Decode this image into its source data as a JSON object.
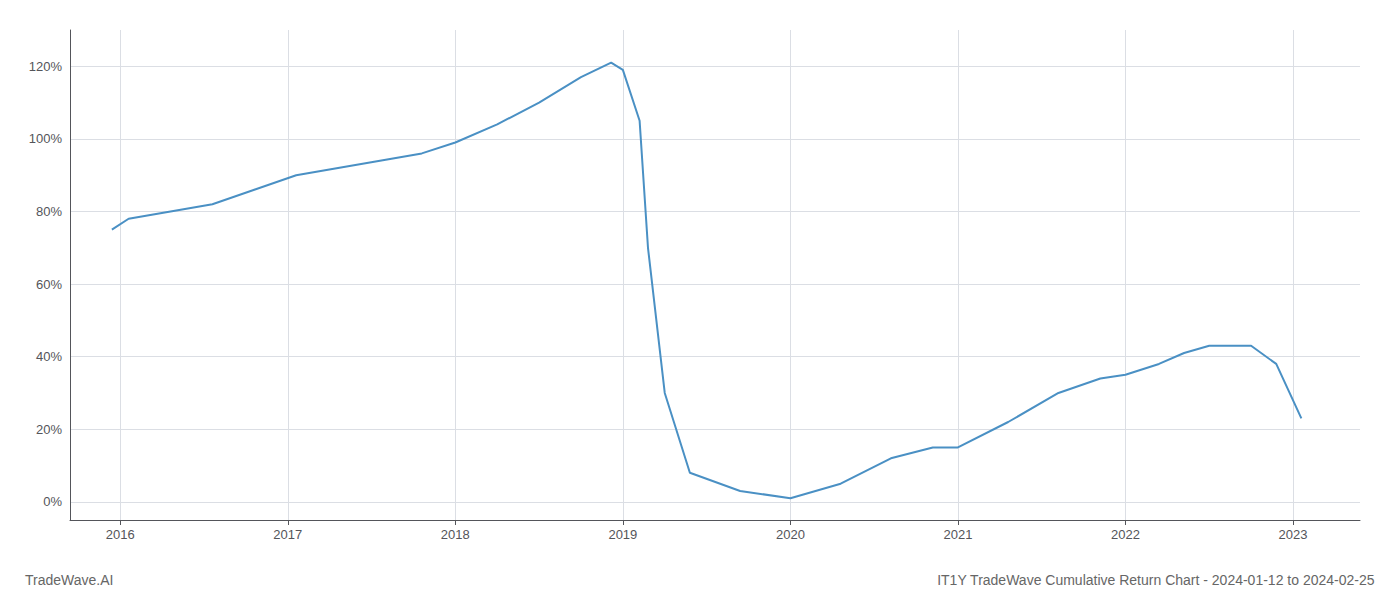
{
  "chart_data": {
    "type": "line",
    "title": "IT1Y TradeWave Cumulative Return Chart - 2024-01-12 to 2024-02-25",
    "annotations": [
      "TradeWave.AI"
    ],
    "x": [
      2015.95,
      2016.05,
      2016.3,
      2016.55,
      2016.8,
      2017.05,
      2017.3,
      2017.55,
      2017.8,
      2018.0,
      2018.25,
      2018.5,
      2018.75,
      2018.93,
      2019.0,
      2019.1,
      2019.15,
      2019.25,
      2019.4,
      2019.7,
      2020.0,
      2020.3,
      2020.6,
      2020.85,
      2021.0,
      2021.3,
      2021.6,
      2021.85,
      2022.0,
      2022.2,
      2022.35,
      2022.5,
      2022.75,
      2022.9,
      2023.05
    ],
    "values": [
      75,
      78,
      80,
      82,
      86,
      90,
      92,
      94,
      96,
      99,
      104,
      110,
      117,
      121,
      119,
      105,
      70,
      30,
      8,
      3,
      1,
      5,
      12,
      15,
      15,
      22,
      30,
      34,
      35,
      38,
      41,
      43,
      43,
      38,
      23
    ],
    "color": "#4a90c4",
    "xlim": [
      2015.7,
      2023.4
    ],
    "ylim": [
      -5,
      130
    ],
    "xticks": [
      2016,
      2017,
      2018,
      2019,
      2020,
      2021,
      2022,
      2023
    ],
    "yticks": [
      {
        "value": 0,
        "label": "0%"
      },
      {
        "value": 20,
        "label": "20%"
      },
      {
        "value": 40,
        "label": "40%"
      },
      {
        "value": 60,
        "label": "60%"
      },
      {
        "value": 80,
        "label": "80%"
      },
      {
        "value": 100,
        "label": "100%"
      },
      {
        "value": 120,
        "label": "120%"
      }
    ],
    "grid": true
  }
}
